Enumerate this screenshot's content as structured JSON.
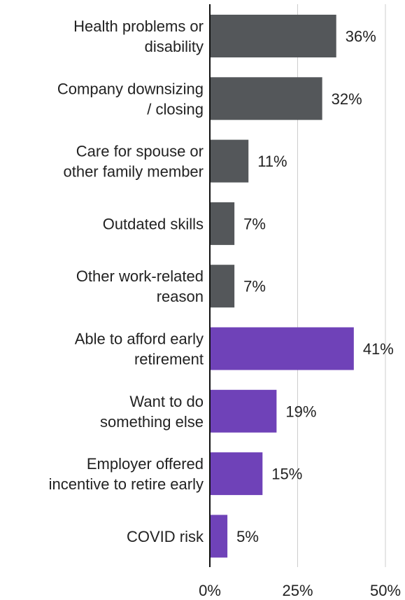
{
  "chart_data": {
    "type": "bar",
    "orientation": "horizontal",
    "categories": [
      [
        "Health problems or",
        "disability"
      ],
      [
        "Company downsizing",
        "/ closing"
      ],
      [
        "Care for spouse or",
        "other family member"
      ],
      [
        "Outdated skills"
      ],
      [
        "Other work-related",
        "reason"
      ],
      [
        "Able to afford early",
        "retirement"
      ],
      [
        "Want to do",
        "something else"
      ],
      [
        "Employer offered",
        "incentive to retire early"
      ],
      [
        "COVID risk"
      ]
    ],
    "values": [
      36,
      32,
      11,
      7,
      7,
      41,
      19,
      15,
      5
    ],
    "value_labels": [
      "36%",
      "32%",
      "11%",
      "7%",
      "7%",
      "41%",
      "19%",
      "15%",
      "5%"
    ],
    "bar_colors": [
      "#54575a",
      "#54575a",
      "#54575a",
      "#54575a",
      "#54575a",
      "#6f42b8",
      "#6f42b8",
      "#6f42b8",
      "#6f42b8"
    ],
    "xlim": [
      0,
      50
    ],
    "xticks": [
      0,
      25,
      50
    ],
    "xtick_labels": [
      "0%",
      "25%",
      "50%"
    ],
    "grid": true,
    "title": "",
    "xlabel": "",
    "ylabel": ""
  }
}
